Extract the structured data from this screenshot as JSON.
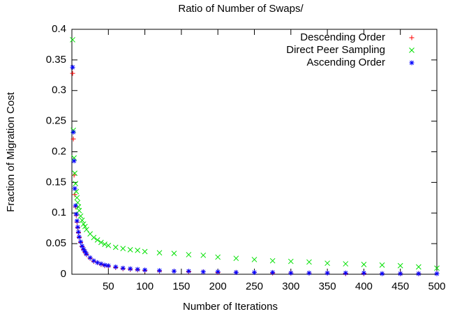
{
  "chart_data": {
    "type": "scatter",
    "title": "Ratio of Number of Swaps/",
    "xlabel": "Number of Iterations",
    "ylabel": "Fraction of Migration Cost",
    "x": [
      1,
      2,
      3,
      4,
      5,
      6,
      7,
      8,
      9,
      10,
      12,
      14,
      16,
      18,
      20,
      25,
      30,
      35,
      40,
      45,
      50,
      60,
      70,
      80,
      90,
      100,
      120,
      140,
      160,
      180,
      200,
      225,
      250,
      275,
      300,
      325,
      350,
      375,
      400,
      425,
      450,
      475,
      500
    ],
    "series": [
      {
        "name": "Descending Order",
        "color": "#ff0000",
        "marker": "plus",
        "values": [
          0.328,
          0.221,
          0.162,
          0.13,
          0.11,
          0.096,
          0.085,
          0.076,
          0.068,
          0.06,
          0.052,
          0.045,
          0.04,
          0.036,
          0.032,
          0.026,
          0.021,
          0.019,
          0.016,
          0.014,
          0.013,
          0.011,
          0.009,
          0.008,
          0.007,
          0.006,
          0.005,
          0.005,
          0.004,
          0.004,
          0.003,
          0.003,
          0.003,
          0.002,
          0.002,
          0.002,
          0.002,
          0.001,
          0.001,
          0.001,
          0.001,
          0.001,
          0.001
        ]
      },
      {
        "name": "Direct Peer Sampling",
        "color": "#00e000",
        "marker": "cross",
        "values": [
          0.383,
          0.235,
          0.19,
          0.165,
          0.148,
          0.135,
          0.125,
          0.117,
          0.11,
          0.104,
          0.095,
          0.088,
          0.082,
          0.078,
          0.073,
          0.066,
          0.06,
          0.056,
          0.052,
          0.049,
          0.047,
          0.044,
          0.042,
          0.04,
          0.039,
          0.037,
          0.035,
          0.034,
          0.032,
          0.031,
          0.028,
          0.026,
          0.024,
          0.022,
          0.021,
          0.02,
          0.018,
          0.017,
          0.016,
          0.015,
          0.014,
          0.012,
          0.01
        ]
      },
      {
        "name": "Ascending Order",
        "color": "#0000ff",
        "marker": "star",
        "values": [
          0.338,
          0.232,
          0.185,
          0.14,
          0.112,
          0.098,
          0.087,
          0.077,
          0.069,
          0.061,
          0.053,
          0.046,
          0.041,
          0.037,
          0.033,
          0.027,
          0.022,
          0.019,
          0.017,
          0.015,
          0.014,
          0.012,
          0.01,
          0.009,
          0.008,
          0.007,
          0.006,
          0.005,
          0.005,
          0.004,
          0.004,
          0.003,
          0.003,
          0.003,
          0.002,
          0.002,
          0.002,
          0.002,
          0.002,
          0.001,
          0.001,
          0.001,
          0.001
        ]
      }
    ],
    "xlim": [
      0,
      500
    ],
    "xticks": [
      50,
      100,
      150,
      200,
      250,
      300,
      350,
      400,
      450,
      500
    ],
    "ylim": [
      0,
      0.4
    ],
    "yticks": [
      0,
      0.05,
      0.1,
      0.15,
      0.2,
      0.25,
      0.3,
      0.35,
      0.4
    ],
    "grid": false,
    "legend": "top-right"
  }
}
